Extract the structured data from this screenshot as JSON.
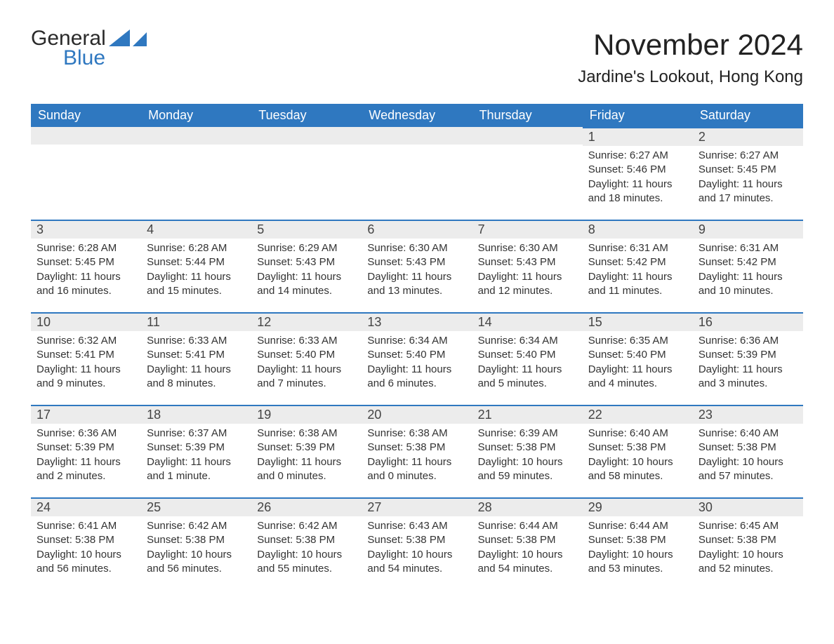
{
  "brand": {
    "word1": "General",
    "word2": "Blue"
  },
  "title": "November 2024",
  "location": "Jardine's Lookout, Hong Kong",
  "colors": {
    "header_bg": "#2f78c0",
    "header_text": "#ffffff",
    "row_sep": "#2f78c0",
    "daynum_bg": "#ececec",
    "body_text": "#333333",
    "page_bg": "#ffffff",
    "brand_blue": "#2f78c0"
  },
  "typography": {
    "title_fontsize": 42,
    "location_fontsize": 24,
    "header_fontsize": 18,
    "daynum_fontsize": 18,
    "body_fontsize": 15
  },
  "day_headers": [
    "Sunday",
    "Monday",
    "Tuesday",
    "Wednesday",
    "Thursday",
    "Friday",
    "Saturday"
  ],
  "labels": {
    "sunrise": "Sunrise:",
    "sunset": "Sunset:",
    "daylight": "Daylight:"
  },
  "weeks": [
    [
      null,
      null,
      null,
      null,
      null,
      {
        "n": "1",
        "sunrise": "6:27 AM",
        "sunset": "5:46 PM",
        "daylight": "11 hours and 18 minutes."
      },
      {
        "n": "2",
        "sunrise": "6:27 AM",
        "sunset": "5:45 PM",
        "daylight": "11 hours and 17 minutes."
      }
    ],
    [
      {
        "n": "3",
        "sunrise": "6:28 AM",
        "sunset": "5:45 PM",
        "daylight": "11 hours and 16 minutes."
      },
      {
        "n": "4",
        "sunrise": "6:28 AM",
        "sunset": "5:44 PM",
        "daylight": "11 hours and 15 minutes."
      },
      {
        "n": "5",
        "sunrise": "6:29 AM",
        "sunset": "5:43 PM",
        "daylight": "11 hours and 14 minutes."
      },
      {
        "n": "6",
        "sunrise": "6:30 AM",
        "sunset": "5:43 PM",
        "daylight": "11 hours and 13 minutes."
      },
      {
        "n": "7",
        "sunrise": "6:30 AM",
        "sunset": "5:43 PM",
        "daylight": "11 hours and 12 minutes."
      },
      {
        "n": "8",
        "sunrise": "6:31 AM",
        "sunset": "5:42 PM",
        "daylight": "11 hours and 11 minutes."
      },
      {
        "n": "9",
        "sunrise": "6:31 AM",
        "sunset": "5:42 PM",
        "daylight": "11 hours and 10 minutes."
      }
    ],
    [
      {
        "n": "10",
        "sunrise": "6:32 AM",
        "sunset": "5:41 PM",
        "daylight": "11 hours and 9 minutes."
      },
      {
        "n": "11",
        "sunrise": "6:33 AM",
        "sunset": "5:41 PM",
        "daylight": "11 hours and 8 minutes."
      },
      {
        "n": "12",
        "sunrise": "6:33 AM",
        "sunset": "5:40 PM",
        "daylight": "11 hours and 7 minutes."
      },
      {
        "n": "13",
        "sunrise": "6:34 AM",
        "sunset": "5:40 PM",
        "daylight": "11 hours and 6 minutes."
      },
      {
        "n": "14",
        "sunrise": "6:34 AM",
        "sunset": "5:40 PM",
        "daylight": "11 hours and 5 minutes."
      },
      {
        "n": "15",
        "sunrise": "6:35 AM",
        "sunset": "5:40 PM",
        "daylight": "11 hours and 4 minutes."
      },
      {
        "n": "16",
        "sunrise": "6:36 AM",
        "sunset": "5:39 PM",
        "daylight": "11 hours and 3 minutes."
      }
    ],
    [
      {
        "n": "17",
        "sunrise": "6:36 AM",
        "sunset": "5:39 PM",
        "daylight": "11 hours and 2 minutes."
      },
      {
        "n": "18",
        "sunrise": "6:37 AM",
        "sunset": "5:39 PM",
        "daylight": "11 hours and 1 minute."
      },
      {
        "n": "19",
        "sunrise": "6:38 AM",
        "sunset": "5:39 PM",
        "daylight": "11 hours and 0 minutes."
      },
      {
        "n": "20",
        "sunrise": "6:38 AM",
        "sunset": "5:38 PM",
        "daylight": "11 hours and 0 minutes."
      },
      {
        "n": "21",
        "sunrise": "6:39 AM",
        "sunset": "5:38 PM",
        "daylight": "10 hours and 59 minutes."
      },
      {
        "n": "22",
        "sunrise": "6:40 AM",
        "sunset": "5:38 PM",
        "daylight": "10 hours and 58 minutes."
      },
      {
        "n": "23",
        "sunrise": "6:40 AM",
        "sunset": "5:38 PM",
        "daylight": "10 hours and 57 minutes."
      }
    ],
    [
      {
        "n": "24",
        "sunrise": "6:41 AM",
        "sunset": "5:38 PM",
        "daylight": "10 hours and 56 minutes."
      },
      {
        "n": "25",
        "sunrise": "6:42 AM",
        "sunset": "5:38 PM",
        "daylight": "10 hours and 56 minutes."
      },
      {
        "n": "26",
        "sunrise": "6:42 AM",
        "sunset": "5:38 PM",
        "daylight": "10 hours and 55 minutes."
      },
      {
        "n": "27",
        "sunrise": "6:43 AM",
        "sunset": "5:38 PM",
        "daylight": "10 hours and 54 minutes."
      },
      {
        "n": "28",
        "sunrise": "6:44 AM",
        "sunset": "5:38 PM",
        "daylight": "10 hours and 54 minutes."
      },
      {
        "n": "29",
        "sunrise": "6:44 AM",
        "sunset": "5:38 PM",
        "daylight": "10 hours and 53 minutes."
      },
      {
        "n": "30",
        "sunrise": "6:45 AM",
        "sunset": "5:38 PM",
        "daylight": "10 hours and 52 minutes."
      }
    ]
  ]
}
